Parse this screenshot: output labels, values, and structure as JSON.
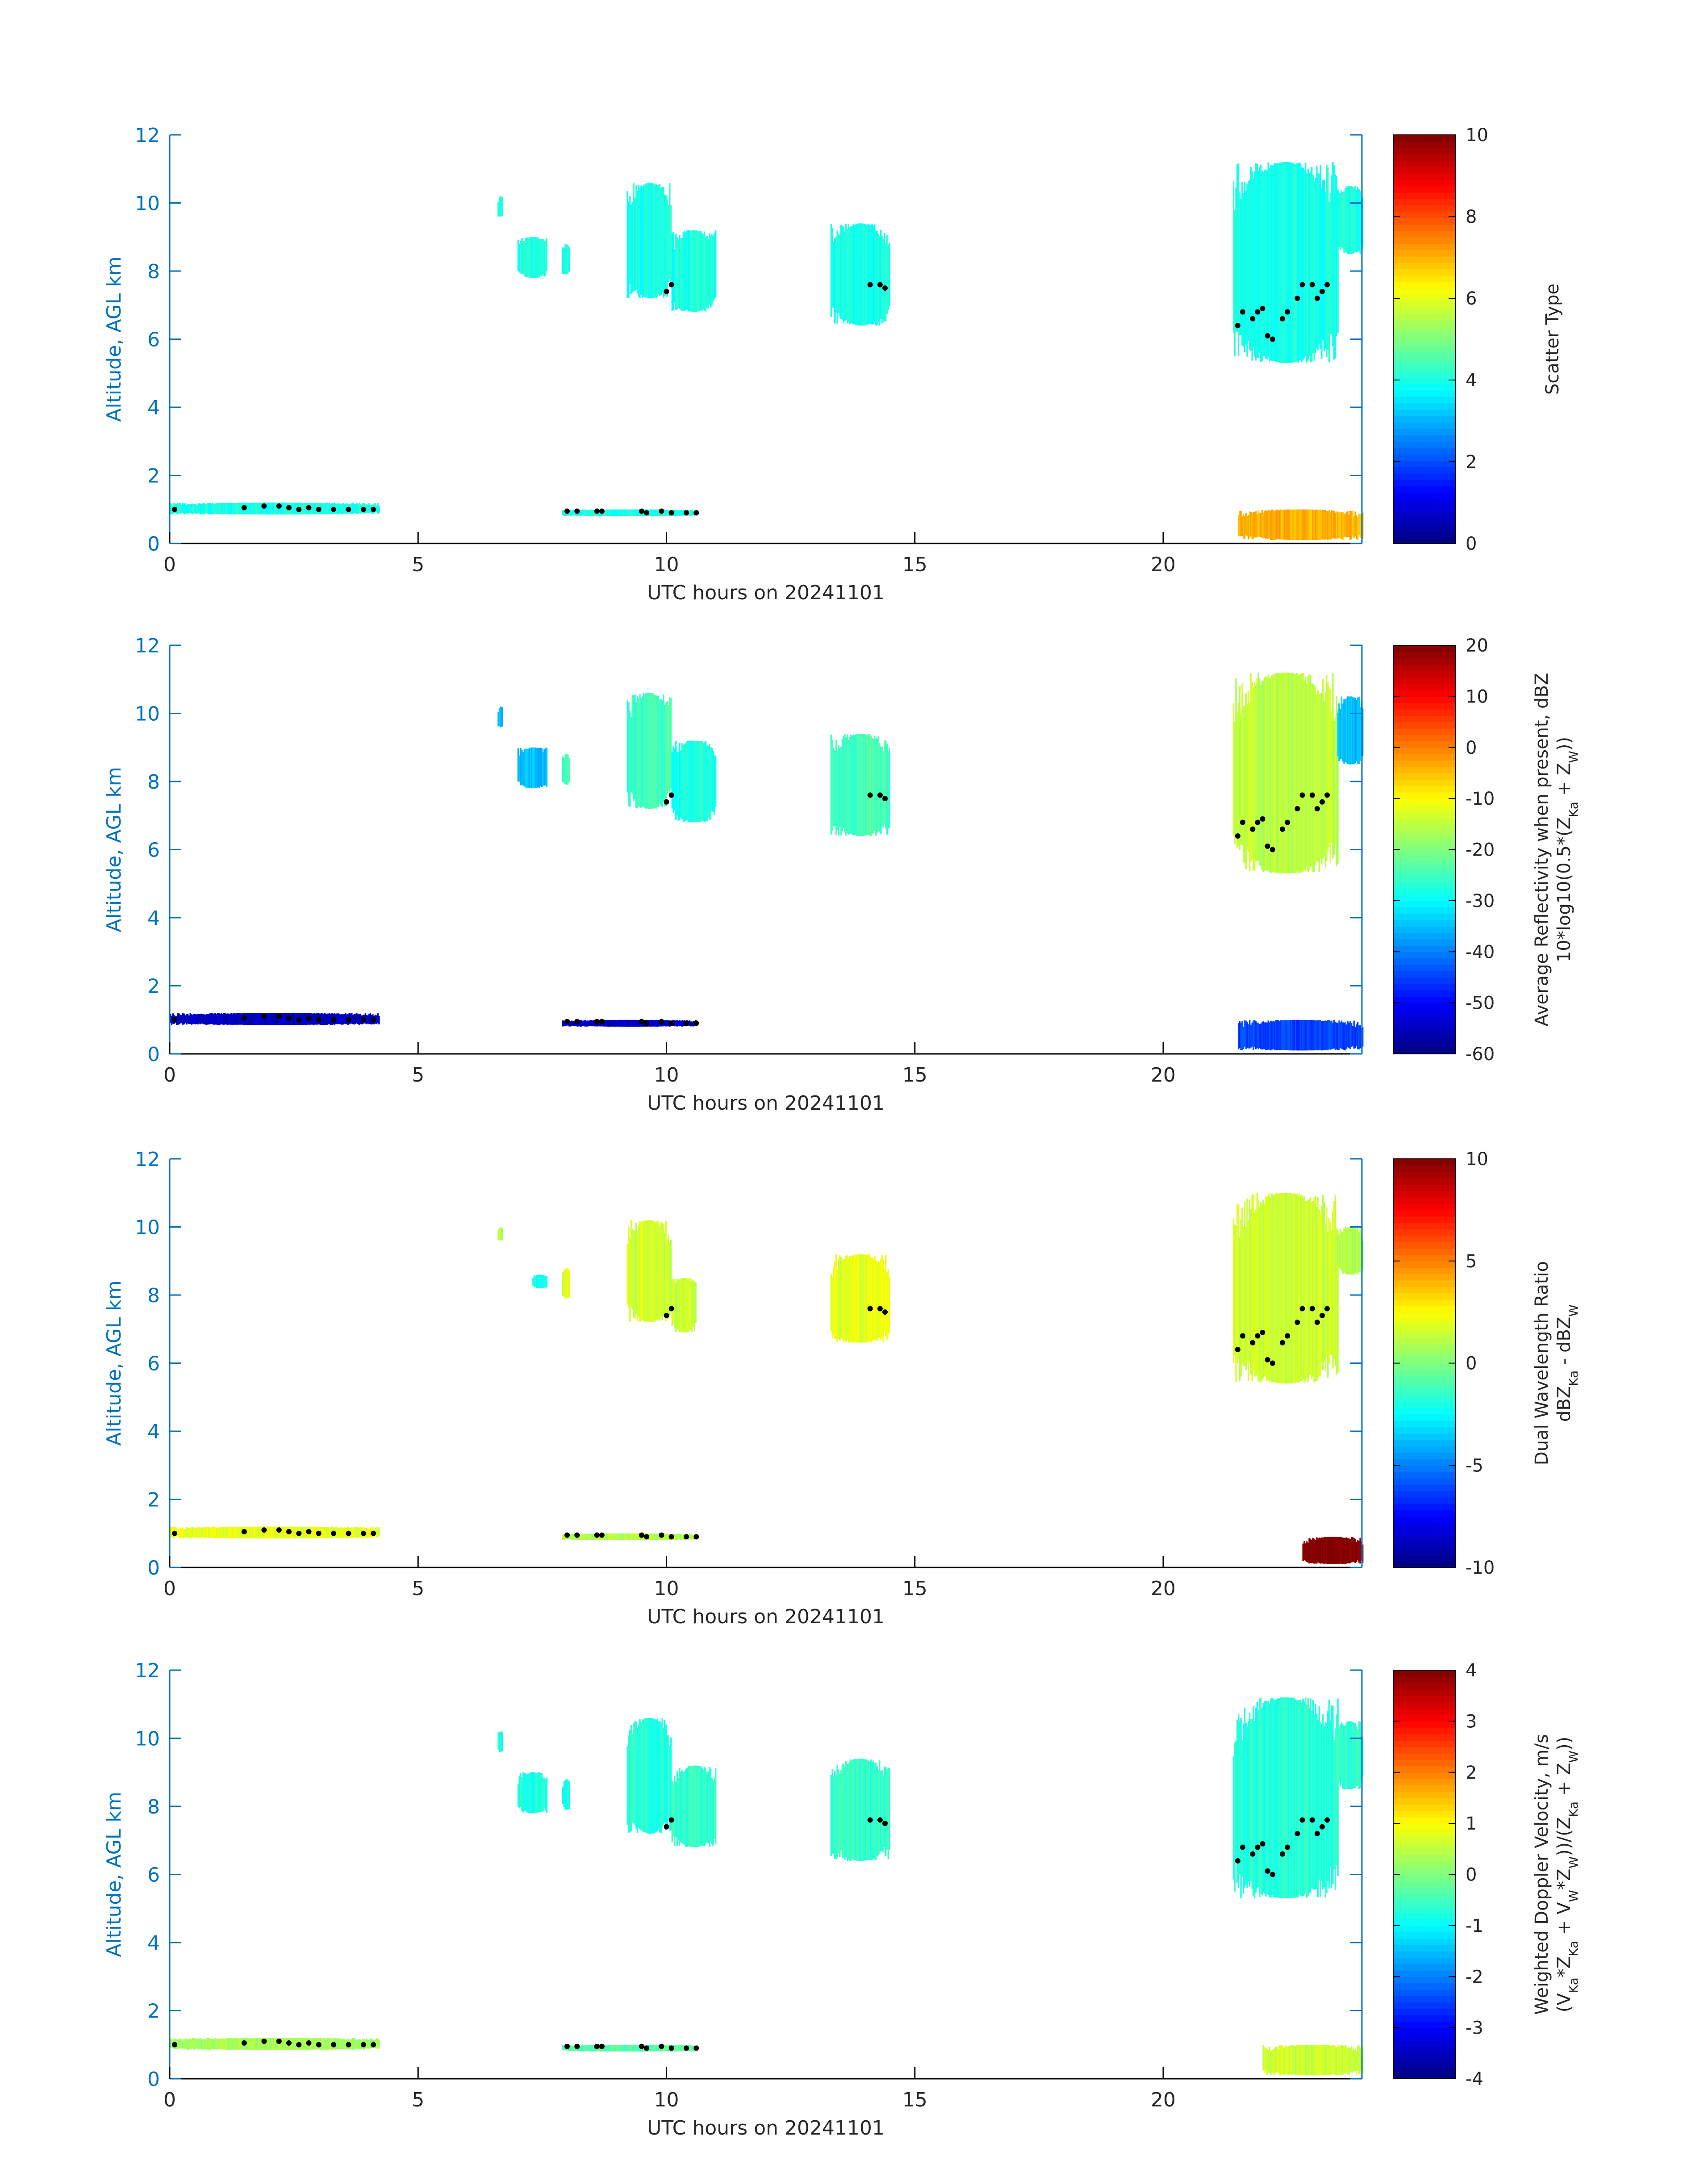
{
  "figure": {
    "colors": {
      "axis": "#0072BD",
      "text": "#262626",
      "contour": "#000000",
      "frame": "#000000"
    },
    "colormap": "jet"
  },
  "chart_data": [
    {
      "type": "heatmap",
      "title": "",
      "xlabel": "UTC hours on 20241101",
      "ylabel": "Altitude, AGL km",
      "xlim": [
        0,
        24
      ],
      "ylim": [
        0,
        12
      ],
      "xticks": [
        0,
        5,
        10,
        15,
        20
      ],
      "yticks": [
        0,
        2,
        4,
        6,
        8,
        10,
        12
      ],
      "colorbar": {
        "label_lines": [
          "Scatter Type"
        ],
        "clim": [
          0,
          10
        ],
        "ticks": [
          0,
          2,
          4,
          6,
          8,
          10
        ]
      },
      "grid": false,
      "field": "scatter-type",
      "regions": [
        {
          "name": "cirrus-0640",
          "t": [
            6.6,
            6.7
          ],
          "base": 9.6,
          "top": 10.2,
          "value": 4
        },
        {
          "name": "cirrus-0715",
          "t": [
            7.0,
            7.6
          ],
          "base": 7.8,
          "top": 9.0,
          "value": 4
        },
        {
          "name": "cirrus-0800",
          "t": [
            7.9,
            8.05
          ],
          "base": 7.9,
          "top": 8.8,
          "value": 4
        },
        {
          "name": "cloud-0930",
          "t": [
            9.2,
            10.1
          ],
          "base": 7.2,
          "top": 10.6,
          "value": 4
        },
        {
          "name": "cloud-1020",
          "t": [
            10.1,
            11.0
          ],
          "base": 6.8,
          "top": 9.2,
          "value": 4
        },
        {
          "name": "cloud-1400",
          "t": [
            13.3,
            14.5
          ],
          "base": 6.4,
          "top": 9.4,
          "value": 4
        },
        {
          "name": "cloud-2200",
          "t": [
            21.4,
            23.5
          ],
          "base": 5.3,
          "top": 11.2,
          "value": 4
        },
        {
          "name": "cloud-2350",
          "t": [
            23.5,
            24.0
          ],
          "base": 8.5,
          "top": 10.5,
          "value": 4
        },
        {
          "name": "low-echo-0300",
          "t": [
            0.0,
            4.2
          ],
          "base": 0.85,
          "top": 1.2,
          "value": 4
        },
        {
          "name": "low-echo-0900",
          "t": [
            7.9,
            10.6
          ],
          "base": 0.8,
          "top": 1.0,
          "value": 4
        },
        {
          "name": "surface-2300",
          "t": [
            21.5,
            24.0
          ],
          "base": 0.1,
          "top": 1.0,
          "value": 7
        }
      ]
    },
    {
      "type": "heatmap",
      "title": "",
      "xlabel": "UTC hours on 20241101",
      "ylabel": "Altitude, AGL km",
      "xlim": [
        0,
        24
      ],
      "ylim": [
        0,
        12
      ],
      "xticks": [
        0,
        5,
        10,
        15,
        20
      ],
      "yticks": [
        0,
        2,
        4,
        6,
        8,
        10,
        12
      ],
      "colorbar": {
        "label_lines": [
          "Average Reflectivity when present, dBZ",
          "10*log10(0.5*(Z",
          "Ka",
          " + Z",
          "W",
          "))"
        ],
        "clim": [
          -60,
          20
        ],
        "ticks": [
          -60,
          -50,
          -40,
          -30,
          -20,
          -10,
          0,
          10,
          20
        ]
      },
      "grid": false,
      "field": "reflectivity-dbz",
      "regions": [
        {
          "name": "cirrus-0640",
          "t": [
            6.6,
            6.7
          ],
          "base": 9.6,
          "top": 10.2,
          "value": -35
        },
        {
          "name": "cirrus-0715",
          "t": [
            7.0,
            7.6
          ],
          "base": 7.8,
          "top": 9.0,
          "value": -35
        },
        {
          "name": "cirrus-0800",
          "t": [
            7.9,
            8.05
          ],
          "base": 7.9,
          "top": 8.8,
          "value": -25
        },
        {
          "name": "cloud-0930",
          "t": [
            9.2,
            10.1
          ],
          "base": 7.2,
          "top": 10.6,
          "value": -25
        },
        {
          "name": "cloud-1020",
          "t": [
            10.1,
            11.0
          ],
          "base": 6.8,
          "top": 9.2,
          "value": -28
        },
        {
          "name": "cloud-1400",
          "t": [
            13.3,
            14.5
          ],
          "base": 6.4,
          "top": 9.4,
          "value": -25
        },
        {
          "name": "cloud-2200",
          "t": [
            21.4,
            23.5
          ],
          "base": 5.3,
          "top": 11.2,
          "value": -15
        },
        {
          "name": "cloud-2350",
          "t": [
            23.5,
            24.0
          ],
          "base": 8.5,
          "top": 10.5,
          "value": -35
        },
        {
          "name": "low-echo-0300",
          "t": [
            0.0,
            4.2
          ],
          "base": 0.85,
          "top": 1.2,
          "value": -55
        },
        {
          "name": "low-echo-0900",
          "t": [
            7.9,
            10.6
          ],
          "base": 0.8,
          "top": 1.0,
          "value": -55
        },
        {
          "name": "surface-2300",
          "t": [
            21.5,
            24.0
          ],
          "base": 0.1,
          "top": 1.0,
          "value": -45
        }
      ]
    },
    {
      "type": "heatmap",
      "title": "",
      "xlabel": "UTC hours on 20241101",
      "ylabel": "Altitude, AGL km",
      "xlim": [
        0,
        24
      ],
      "ylim": [
        0,
        12
      ],
      "xticks": [
        0,
        5,
        10,
        15,
        20
      ],
      "yticks": [
        0,
        2,
        4,
        6,
        8,
        10,
        12
      ],
      "colorbar": {
        "label_lines": [
          "Dual Wavelength Ratio",
          "dBZ",
          "Ka",
          " - dBZ",
          "W"
        ],
        "clim": [
          -10,
          10
        ],
        "ticks": [
          -10,
          -5,
          0,
          5,
          10
        ]
      },
      "grid": false,
      "field": "dual-wavelength-ratio",
      "regions": [
        {
          "name": "cirrus-0640",
          "t": [
            6.6,
            6.7
          ],
          "base": 9.6,
          "top": 10.0,
          "value": 1
        },
        {
          "name": "cirrus-0715",
          "t": [
            7.3,
            7.6
          ],
          "base": 8.2,
          "top": 8.6,
          "value": -2
        },
        {
          "name": "cirrus-0800",
          "t": [
            7.9,
            8.05
          ],
          "base": 7.9,
          "top": 8.8,
          "value": 2
        },
        {
          "name": "cloud-0930",
          "t": [
            9.2,
            10.1
          ],
          "base": 7.2,
          "top": 10.2,
          "value": 1.5
        },
        {
          "name": "cloud-1020",
          "t": [
            10.1,
            10.6
          ],
          "base": 6.9,
          "top": 8.5,
          "value": 1.5
        },
        {
          "name": "cloud-1400",
          "t": [
            13.3,
            14.5
          ],
          "base": 6.6,
          "top": 9.2,
          "value": 2
        },
        {
          "name": "cloud-2200",
          "t": [
            21.4,
            23.5
          ],
          "base": 5.4,
          "top": 11.0,
          "value": 1.5
        },
        {
          "name": "cloud-2350",
          "t": [
            23.5,
            24.0
          ],
          "base": 8.6,
          "top": 10.0,
          "value": 1
        },
        {
          "name": "low-echo-0300",
          "t": [
            0.0,
            4.2
          ],
          "base": 0.85,
          "top": 1.2,
          "value": 2
        },
        {
          "name": "low-echo-0900",
          "t": [
            7.9,
            10.6
          ],
          "base": 0.8,
          "top": 1.0,
          "value": 1
        },
        {
          "name": "surface-2300",
          "t": [
            22.8,
            24.0
          ],
          "base": 0.1,
          "top": 0.9,
          "value": 10
        }
      ]
    },
    {
      "type": "heatmap",
      "title": "",
      "xlabel": "UTC hours on 20241101",
      "ylabel": "Altitude, AGL km",
      "xlim": [
        0,
        24
      ],
      "ylim": [
        0,
        12
      ],
      "xticks": [
        0,
        5,
        10,
        15,
        20
      ],
      "yticks": [
        0,
        2,
        4,
        6,
        8,
        10,
        12
      ],
      "colorbar": {
        "label_lines": [
          "Weighted Doppler Velocity, m/s",
          "(V",
          "Ka",
          "*Z",
          "Ka",
          " + V",
          "W",
          "*Z",
          "W",
          "))/(Z",
          "Ka",
          " + Z",
          "W",
          "))"
        ],
        "clim": [
          -4,
          4
        ],
        "ticks": [
          -4,
          -3,
          -2,
          -1,
          0,
          1,
          2,
          3,
          4
        ]
      },
      "grid": false,
      "field": "doppler-velocity",
      "regions": [
        {
          "name": "cirrus-0640",
          "t": [
            6.6,
            6.7
          ],
          "base": 9.6,
          "top": 10.2,
          "value": -0.8
        },
        {
          "name": "cirrus-0715",
          "t": [
            7.0,
            7.6
          ],
          "base": 7.8,
          "top": 9.0,
          "value": -0.8
        },
        {
          "name": "cirrus-0800",
          "t": [
            7.9,
            8.05
          ],
          "base": 7.9,
          "top": 8.8,
          "value": -0.7
        },
        {
          "name": "cloud-0930",
          "t": [
            9.2,
            10.1
          ],
          "base": 7.2,
          "top": 10.6,
          "value": -0.7
        },
        {
          "name": "cloud-1020",
          "t": [
            10.1,
            11.0
          ],
          "base": 6.8,
          "top": 9.2,
          "value": -0.6
        },
        {
          "name": "cloud-1400",
          "t": [
            13.3,
            14.5
          ],
          "base": 6.4,
          "top": 9.4,
          "value": -0.6
        },
        {
          "name": "cloud-2200",
          "t": [
            21.4,
            23.5
          ],
          "base": 5.3,
          "top": 11.2,
          "value": -0.7
        },
        {
          "name": "cloud-2350",
          "t": [
            23.5,
            24.0
          ],
          "base": 8.5,
          "top": 10.5,
          "value": -0.6
        },
        {
          "name": "low-echo-0300",
          "t": [
            0.0,
            4.2
          ],
          "base": 0.85,
          "top": 1.2,
          "value": 0.3
        },
        {
          "name": "low-echo-0900",
          "t": [
            7.9,
            10.6
          ],
          "base": 0.8,
          "top": 1.0,
          "value": -0.3
        },
        {
          "name": "surface-2300",
          "t": [
            22.0,
            24.0
          ],
          "base": 0.1,
          "top": 1.0,
          "value": 0.6
        }
      ]
    }
  ],
  "cloud_base_markers": [
    {
      "t": 0.1,
      "h": 1.0
    },
    {
      "t": 1.5,
      "h": 1.05
    },
    {
      "t": 1.9,
      "h": 1.1
    },
    {
      "t": 2.2,
      "h": 1.1
    },
    {
      "t": 2.4,
      "h": 1.05
    },
    {
      "t": 2.6,
      "h": 1.0
    },
    {
      "t": 2.8,
      "h": 1.05
    },
    {
      "t": 3.0,
      "h": 1.0
    },
    {
      "t": 3.3,
      "h": 1.0
    },
    {
      "t": 3.6,
      "h": 1.0
    },
    {
      "t": 3.9,
      "h": 1.0
    },
    {
      "t": 4.1,
      "h": 1.0
    },
    {
      "t": 8.0,
      "h": 0.95
    },
    {
      "t": 8.2,
      "h": 0.95
    },
    {
      "t": 8.6,
      "h": 0.95
    },
    {
      "t": 8.7,
      "h": 0.95
    },
    {
      "t": 9.5,
      "h": 0.95
    },
    {
      "t": 9.6,
      "h": 0.9
    },
    {
      "t": 9.9,
      "h": 0.95
    },
    {
      "t": 10.1,
      "h": 0.9
    },
    {
      "t": 10.4,
      "h": 0.9
    },
    {
      "t": 10.6,
      "h": 0.9
    },
    {
      "t": 10.0,
      "h": 7.4
    },
    {
      "t": 10.1,
      "h": 7.6
    },
    {
      "t": 14.1,
      "h": 7.6
    },
    {
      "t": 14.3,
      "h": 7.6
    },
    {
      "t": 14.4,
      "h": 7.5
    },
    {
      "t": 21.5,
      "h": 6.4
    },
    {
      "t": 21.6,
      "h": 6.8
    },
    {
      "t": 21.8,
      "h": 6.6
    },
    {
      "t": 21.9,
      "h": 6.8
    },
    {
      "t": 22.0,
      "h": 6.9
    },
    {
      "t": 22.1,
      "h": 6.1
    },
    {
      "t": 22.2,
      "h": 6.0
    },
    {
      "t": 22.4,
      "h": 6.6
    },
    {
      "t": 22.5,
      "h": 6.8
    },
    {
      "t": 22.7,
      "h": 7.2
    },
    {
      "t": 22.8,
      "h": 7.6
    },
    {
      "t": 23.0,
      "h": 7.6
    },
    {
      "t": 23.1,
      "h": 7.2
    },
    {
      "t": 23.2,
      "h": 7.4
    },
    {
      "t": 23.3,
      "h": 7.6
    }
  ]
}
